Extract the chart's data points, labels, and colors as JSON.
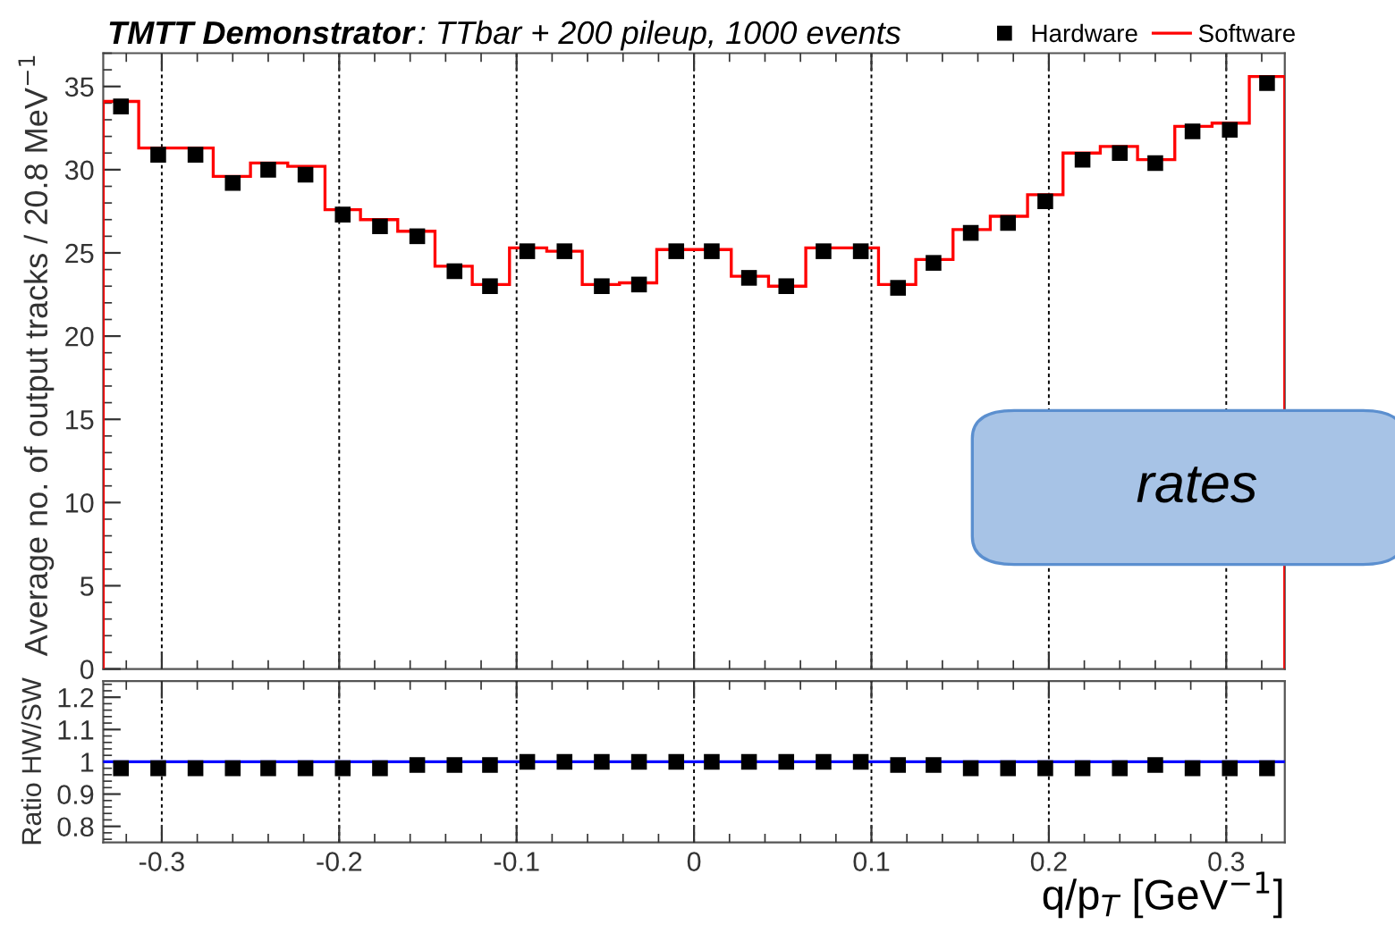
{
  "chart_data": [
    {
      "type": "histogram",
      "title": "TMTT Demonstrator",
      "subtitle": ": TTbar + 200 pileup, 1000 events",
      "ylabel": "Average no. of output tracks / 20.8 MeV$^{−1}$",
      "bins": [
        -0.333,
        -0.313,
        -0.292,
        -0.271,
        -0.25,
        -0.229,
        -0.208,
        -0.188,
        -0.167,
        -0.146,
        -0.125,
        -0.104,
        -0.083,
        -0.063,
        -0.042,
        -0.021,
        0,
        0.021,
        0.042,
        0.063,
        0.083,
        0.104,
        0.125,
        0.146,
        0.167,
        0.188,
        0.208,
        0.229,
        0.25,
        0.271,
        0.292,
        0.313,
        0.333
      ],
      "series": [
        {
          "name": "Hardware",
          "type": "scatter",
          "color": "#000000",
          "marker": "square",
          "x": [
            -0.323,
            -0.302,
            -0.281,
            -0.26,
            -0.24,
            -0.219,
            -0.198,
            -0.177,
            -0.156,
            -0.135,
            -0.115,
            -0.094,
            -0.073,
            -0.052,
            -0.031,
            -0.01,
            0.01,
            0.031,
            0.052,
            0.073,
            0.094,
            0.115,
            0.135,
            0.156,
            0.177,
            0.198,
            0.219,
            0.24,
            0.26,
            0.281,
            0.302,
            0.323
          ],
          "values": [
            33.8,
            30.9,
            30.9,
            29.2,
            30.0,
            29.7,
            27.3,
            26.6,
            26.0,
            23.9,
            23.0,
            25.1,
            25.1,
            23.0,
            23.1,
            25.1,
            25.1,
            23.5,
            23.0,
            25.1,
            25.1,
            22.9,
            24.4,
            26.2,
            26.8,
            28.1,
            30.6,
            31.0,
            30.4,
            32.3,
            32.4,
            35.2
          ]
        },
        {
          "name": "Software",
          "type": "histogram",
          "color": "#ff0000",
          "values": [
            34.1,
            31.3,
            31.3,
            29.6,
            30.4,
            30.2,
            27.6,
            27.0,
            26.3,
            24.2,
            23.1,
            25.3,
            25.1,
            23.1,
            23.2,
            25.2,
            25.2,
            23.6,
            23.0,
            25.3,
            25.3,
            23.1,
            24.6,
            26.4,
            27.2,
            28.5,
            31.0,
            31.4,
            30.6,
            32.6,
            32.8,
            35.6
          ]
        }
      ],
      "xlim": [
        -0.333,
        0.333
      ],
      "xticks": [
        -0.3,
        -0.2,
        -0.1,
        0,
        0.1,
        0.2,
        0.3
      ],
      "ylim": [
        0,
        37
      ],
      "yticks": [
        0,
        5,
        10,
        15,
        20,
        25,
        30,
        35
      ],
      "tick_labels": "y",
      "grid": "x",
      "legend": "top right",
      "annotations": [
        "rates"
      ]
    },
    {
      "type": "scatter",
      "xlabel": "q/p$_{T}$ [GeV$^{−1}$]",
      "ylabel": "Ratio HW/SW",
      "x": [
        -0.323,
        -0.302,
        -0.281,
        -0.26,
        -0.24,
        -0.219,
        -0.198,
        -0.177,
        -0.156,
        -0.135,
        -0.115,
        -0.094,
        -0.073,
        -0.052,
        -0.031,
        -0.01,
        0.01,
        0.031,
        0.052,
        0.073,
        0.094,
        0.115,
        0.135,
        0.156,
        0.177,
        0.198,
        0.219,
        0.24,
        0.26,
        0.281,
        0.302,
        0.323
      ],
      "values": [
        0.98,
        0.98,
        0.98,
        0.98,
        0.98,
        0.98,
        0.98,
        0.98,
        0.99,
        0.99,
        0.99,
        1.0,
        1.0,
        1.0,
        1.0,
        1.0,
        1.0,
        1.0,
        1.0,
        1.0,
        1.0,
        0.99,
        0.99,
        0.98,
        0.98,
        0.98,
        0.98,
        0.98,
        0.99,
        0.98,
        0.98,
        0.98
      ],
      "color": "#000000",
      "marker": "square",
      "xlim": [
        -0.333,
        0.333
      ],
      "xticks": [
        -0.3,
        -0.2,
        -0.1,
        0,
        0.1,
        0.2,
        0.3
      ],
      "ylim": [
        0.75,
        1.25
      ],
      "yticks": [
        0.8,
        0.9,
        1,
        1.1,
        1.2
      ],
      "grid": "x",
      "ref_lines": [
        {
          "axis": "y",
          "value": 1,
          "color": "#0000ff"
        }
      ]
    }
  ]
}
